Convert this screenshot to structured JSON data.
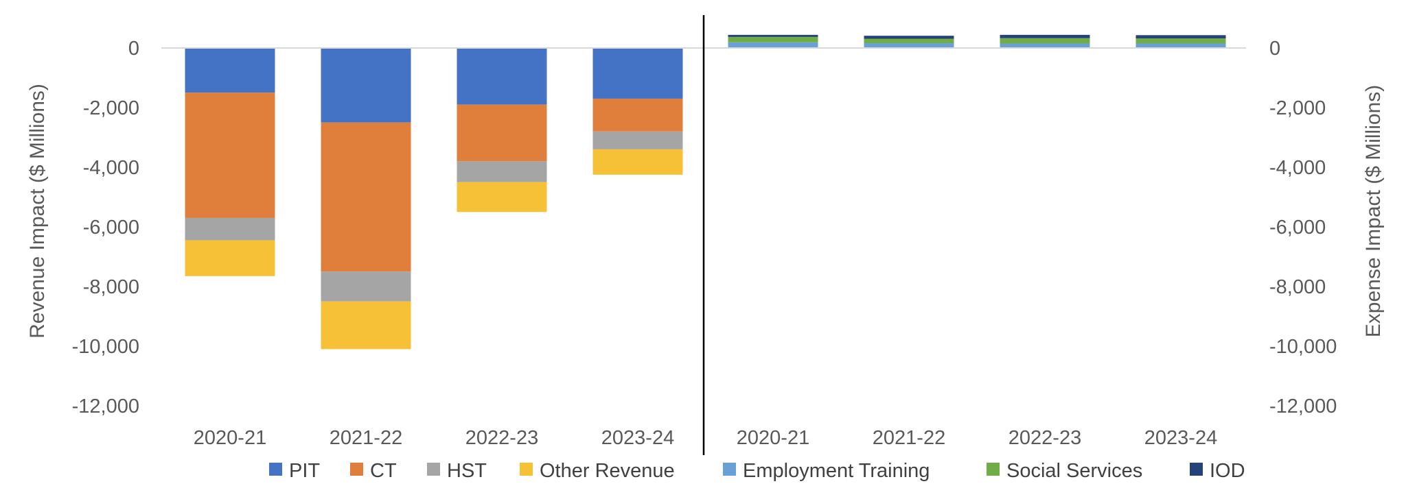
{
  "chart_data": {
    "type": "bar",
    "stacked": true,
    "left_axis": {
      "label": "Revenue Impact ($ Millions)",
      "ylim": [
        -12000,
        0
      ],
      "ticks": [
        "0",
        "-2,000",
        "-4,000",
        "-6,000",
        "-8,000",
        "-10,000",
        "-12,000"
      ],
      "tick_values": [
        0,
        -2000,
        -4000,
        -6000,
        -8000,
        -10000,
        -12000
      ]
    },
    "right_axis": {
      "label": "Expense Impact ($ Millions)",
      "ylim": [
        -12000,
        0
      ],
      "ticks": [
        "0",
        "-2,000",
        "-4,000",
        "-6,000",
        "-8,000",
        "-10,000",
        "-12,000"
      ],
      "tick_values": [
        0,
        -2000,
        -4000,
        -6000,
        -8000,
        -10000,
        -12000
      ]
    },
    "revenue_categories": [
      "2020-21",
      "2021-22",
      "2022-23",
      "2023-24"
    ],
    "expense_categories": [
      "2020-21",
      "2021-22",
      "2022-23",
      "2023-24"
    ],
    "revenue_series": [
      {
        "name": "PIT",
        "color": "#4472C4",
        "values": [
          -1500,
          -2500,
          -1900,
          -1700
        ]
      },
      {
        "name": "CT",
        "color": "#E07F3B",
        "values": [
          -4200,
          -5000,
          -1900,
          -1100
        ]
      },
      {
        "name": "HST",
        "color": "#A5A5A5",
        "values": [
          -750,
          -1000,
          -700,
          -600
        ]
      },
      {
        "name": "Other Revenue",
        "color": "#F6C136",
        "values": [
          -1200,
          -1600,
          -1000,
          -850
        ]
      }
    ],
    "expense_series": [
      {
        "name": "Employment Training",
        "color": "#6AA0D8",
        "values": [
          190,
          160,
          150,
          150
        ]
      },
      {
        "name": "Social Services",
        "color": "#70AD47",
        "values": [
          180,
          150,
          180,
          170
        ]
      },
      {
        "name": "IOD",
        "color": "#26427A",
        "values": [
          70,
          100,
          110,
          110
        ]
      }
    ],
    "legend": {
      "position": "bottom",
      "items": [
        {
          "name": "PIT",
          "color": "#4472C4"
        },
        {
          "name": "CT",
          "color": "#E07F3B"
        },
        {
          "name": "HST",
          "color": "#A5A5A5"
        },
        {
          "name": "Other Revenue",
          "color": "#F6C136"
        },
        {
          "name": "Employment Training",
          "color": "#6AA0D8"
        },
        {
          "name": "Social Services",
          "color": "#70AD47"
        },
        {
          "name": "IOD",
          "color": "#26427A"
        }
      ]
    },
    "grid": false
  }
}
